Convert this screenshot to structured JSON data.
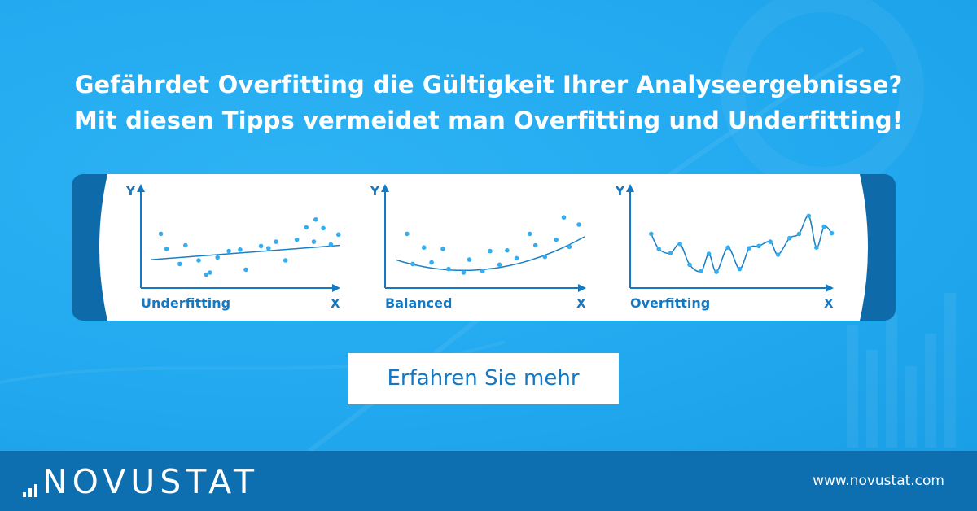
{
  "headline": {
    "line1": "Gefährdet Overfitting die Gültigkeit Ihrer Analyseergebnisse?",
    "line2": "Mit diesen Tipps vermeidet man Overfitting und Underfitting!"
  },
  "cta": {
    "label": "Erfahren Sie mehr"
  },
  "footer": {
    "brand": "NOVUSTAT",
    "url": "www.novustat.com"
  },
  "colors": {
    "background": "#21aaf0",
    "footer": "#0d6fb0",
    "card_edge": "#0e6aa9",
    "axis": "#1578c2",
    "points": "#33aef0",
    "fit_line": "#1a7fc4",
    "cta_text": "#1578c2"
  },
  "chart_data": [
    {
      "type": "scatter",
      "xlabel": "X",
      "ylabel": "Y",
      "caption": "Underfitting",
      "x": [
        0.5,
        0.8,
        1.5,
        1.8,
        2.5,
        2.9,
        3.1,
        3.5,
        4.1,
        4.7,
        5.0,
        5.8,
        6.2,
        6.6,
        7.1,
        7.7,
        8.2,
        8.6,
        8.7,
        9.1,
        9.5,
        9.9
      ],
      "y": [
        6.2,
        4.1,
        2.0,
        4.6,
        2.5,
        0.5,
        0.8,
        2.9,
        3.8,
        4.0,
        1.2,
        4.5,
        4.2,
        5.1,
        2.5,
        5.4,
        7.1,
        5.1,
        8.2,
        7.0,
        4.7,
        6.1
      ],
      "fit": {
        "kind": "linear",
        "y": [
          2.6,
          4.6
        ]
      }
    },
    {
      "type": "scatter",
      "xlabel": "X",
      "ylabel": "Y",
      "caption": "Balanced",
      "x": [
        0.6,
        0.9,
        1.5,
        1.9,
        2.5,
        2.8,
        3.6,
        3.9,
        4.6,
        5.0,
        5.5,
        5.9,
        6.4,
        7.1,
        7.4,
        7.9,
        8.5,
        8.9,
        9.2,
        9.7
      ],
      "y": [
        6.2,
        2.0,
        4.3,
        2.2,
        4.1,
        1.3,
        0.8,
        2.6,
        1.0,
        3.8,
        1.9,
        3.9,
        2.8,
        6.2,
        4.6,
        3.0,
        5.4,
        8.5,
        4.4,
        7.5
      ],
      "fit": {
        "kind": "quadratic"
      }
    },
    {
      "type": "scatter",
      "xlabel": "X",
      "ylabel": "Y",
      "caption": "Overfitting",
      "x": [
        0.5,
        0.9,
        1.5,
        2.0,
        2.5,
        3.1,
        3.5,
        3.9,
        4.5,
        5.1,
        5.6,
        6.1,
        6.7,
        7.1,
        7.7,
        8.2,
        8.7,
        9.1,
        9.5,
        9.9
      ],
      "y": [
        6.2,
        4.1,
        3.5,
        4.8,
        1.9,
        1.0,
        3.4,
        0.9,
        4.3,
        1.3,
        4.2,
        4.5,
        5.1,
        3.3,
        5.6,
        6.2,
        8.7,
        4.3,
        7.2,
        6.3
      ],
      "fit": {
        "kind": "interpolating"
      }
    }
  ]
}
